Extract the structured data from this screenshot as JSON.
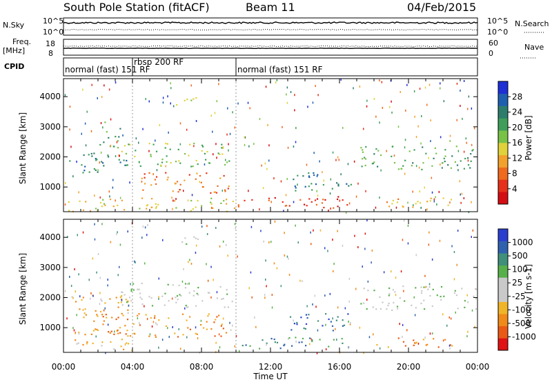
{
  "header": {
    "station": "South Pole Station (fitACF)",
    "beam": "Beam 11",
    "date": "04/Feb/2015"
  },
  "strips": {
    "nsky_label": "N.Sky",
    "nsearch_label": "N.Search",
    "nsky_ticks": [
      "10^5",
      "10^0"
    ],
    "nsearch_ticks": [
      "10^5",
      "10^0"
    ],
    "freq_label_1": "Freq.",
    "freq_label_2": "[MHz]",
    "freq_ticks": [
      "18",
      "8"
    ],
    "nave_label": "Nave",
    "nave_ticks": [
      "60",
      "0"
    ],
    "cpid_label": "CPID",
    "cpid_segments": [
      {
        "start_h": 0.0,
        "end_h": 4.0,
        "text": "normal (fast) 151 RF"
      },
      {
        "start_h": 4.0,
        "end_h": 10.0,
        "text": "rbsp 200 RF"
      },
      {
        "start_h": 10.0,
        "end_h": 24.0,
        "text": "normal (fast) 151 RF"
      }
    ]
  },
  "chart_data": [
    {
      "type": "heatmap",
      "name": "power",
      "ylabel": "Slant Range [km]",
      "x_range_h": [
        0,
        24
      ],
      "ylim": [
        180,
        4600
      ],
      "yticks": [
        1000,
        2000,
        3000,
        4000
      ],
      "colorbar": {
        "label": "Power [dB]",
        "ticks": [
          "4",
          "8",
          "12",
          "16",
          "20",
          "24",
          "28"
        ],
        "colors": [
          "#1e2fd6",
          "#1f5fb0",
          "#2e7d6c",
          "#3f9e5a",
          "#78c247",
          "#e0d23a",
          "#f2a12c",
          "#ef6a1c",
          "#e7301a",
          "#d40d12"
        ]
      },
      "scatter_regions": [
        {
          "t0": 0.3,
          "t1": 3.8,
          "r0": 1500,
          "r1": 2200,
          "level": 2
        },
        {
          "t0": 2.0,
          "t1": 3.3,
          "r0": 2300,
          "r1": 3200,
          "level": 3
        },
        {
          "t0": 3.3,
          "t1": 9.8,
          "r0": 1700,
          "r1": 2500,
          "level": 4
        },
        {
          "t0": 4.5,
          "t1": 9.6,
          "r0": 800,
          "r1": 1500,
          "level": 7
        },
        {
          "t0": 6.5,
          "t1": 7.8,
          "r0": 3700,
          "r1": 4100,
          "level": 4
        },
        {
          "t0": 10.0,
          "t1": 16.5,
          "r0": 300,
          "r1": 700,
          "level": 8
        },
        {
          "t0": 13.0,
          "t1": 16.8,
          "r0": 900,
          "r1": 1500,
          "level": 2
        },
        {
          "t0": 17.2,
          "t1": 23.9,
          "r0": 1600,
          "r1": 2400,
          "level": 3
        },
        {
          "t0": 18.0,
          "t1": 22.5,
          "r0": 350,
          "r1": 700,
          "level": 6
        },
        {
          "t0": 0.1,
          "t1": 10.0,
          "r0": 200,
          "r1": 650,
          "level": 5
        }
      ]
    },
    {
      "type": "heatmap",
      "name": "velocity",
      "ylabel": "Slant Range [km]",
      "x_range_h": [
        0,
        24
      ],
      "ylim": [
        180,
        4600
      ],
      "yticks": [
        1000,
        2000,
        3000,
        4000
      ],
      "xticks": [
        "00:00",
        "04:00",
        "08:00",
        "12:00",
        "16:00",
        "20:00",
        "00:00"
      ],
      "xlabel": "Time UT",
      "colorbar": {
        "label": "Velocity [m s-1]",
        "ticks": [
          "1000",
          "500",
          "100",
          "25",
          "-25",
          "-100",
          "-500",
          "-1000"
        ],
        "colors": [
          "#2a3fce",
          "#2f62ae",
          "#3f8f7a",
          "#58b04a",
          "#c9c9c9",
          "#c9c9c9",
          "#f0b428",
          "#f08a18",
          "#ea5a14",
          "#e01212"
        ]
      },
      "scatter_regions": [
        {
          "t0": 0.3,
          "t1": 3.8,
          "r0": 1500,
          "r1": 2200,
          "level": 6
        },
        {
          "t0": 3.3,
          "t1": 9.8,
          "r0": 1700,
          "r1": 2500,
          "level": 4
        },
        {
          "t0": 0.8,
          "t1": 9.6,
          "r0": 700,
          "r1": 1500,
          "level": 7
        },
        {
          "t0": 6.5,
          "t1": 7.8,
          "r0": 3700,
          "r1": 4100,
          "level": 4
        },
        {
          "t0": 10.0,
          "t1": 16.5,
          "r0": 300,
          "r1": 700,
          "level": 2
        },
        {
          "t0": 13.0,
          "t1": 16.8,
          "r0": 900,
          "r1": 1500,
          "level": 1
        },
        {
          "t0": 17.2,
          "t1": 23.9,
          "r0": 1600,
          "r1": 2400,
          "level": 4
        },
        {
          "t0": 18.0,
          "t1": 22.5,
          "r0": 350,
          "r1": 700,
          "level": 7
        },
        {
          "t0": 0.1,
          "t1": 4.0,
          "r0": 250,
          "r1": 650,
          "level": 6
        }
      ]
    }
  ]
}
